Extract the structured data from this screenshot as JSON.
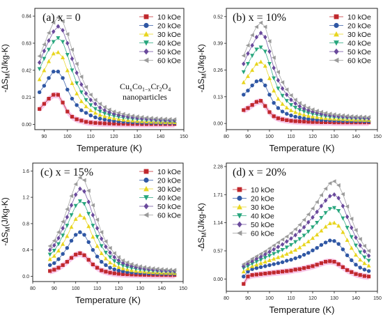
{
  "colors": {
    "10 kOe": "#c0282d",
    "20 kOe": "#2f57a4",
    "30 kOe": "#e8d51e",
    "40 kOe": "#27a67d",
    "50 kOe": "#6a4a9c",
    "60 kOe": "#9a9a9a",
    "band": "#f6b8e4",
    "frame": "#222222"
  },
  "marker_shapes": {
    "10 kOe": "square",
    "20 kOe": "circle",
    "30 kOe": "triangle-up",
    "40 kOe": "triangle-down",
    "50 kOe": "diamond",
    "60 kOe": "triangle-left"
  },
  "chart_data": [
    {
      "type": "scatter",
      "title": "(a) x = 0",
      "xlabel": "Temperature (K)",
      "ylabel": "-ΔS_M(J/kg-K)",
      "xlim": [
        86,
        150
      ],
      "ylim": [
        -0.04,
        0.9
      ],
      "xticks": [
        "90",
        "100",
        "110",
        "120",
        "130",
        "140",
        "150"
      ],
      "yticks": [
        "0.00",
        "0.21",
        "0.42",
        "0.63",
        "0.84"
      ],
      "grid": false,
      "legend_position": "top-right",
      "annotation": {
        "main": "CuxCo1−xCr2O4",
        "sub": "nanoparticles"
      },
      "x": [
        88,
        90,
        92,
        94,
        96,
        98,
        100,
        102,
        104,
        106,
        108,
        110,
        112,
        114,
        116,
        118,
        120,
        122,
        124,
        126,
        128,
        130,
        132,
        134,
        136,
        138,
        140,
        142,
        144,
        146
      ],
      "series": [
        {
          "name": "10 kOe",
          "values": [
            0.12,
            0.16,
            0.2,
            0.23,
            0.23,
            0.17,
            0.1,
            0.06,
            0.04,
            0.03,
            0.02,
            0.015,
            0.012,
            0.01,
            0.008,
            0.007,
            0.006,
            0.005,
            0.005,
            0.004,
            0.004,
            0.004,
            0.003,
            0.003,
            0.003,
            0.003,
            0.003,
            0.003,
            0.003,
            0.003
          ]
        },
        {
          "name": "20 kOe",
          "values": [
            0.25,
            0.3,
            0.36,
            0.41,
            0.41,
            0.36,
            0.27,
            0.2,
            0.15,
            0.11,
            0.09,
            0.07,
            0.055,
            0.045,
            0.038,
            0.032,
            0.028,
            0.024,
            0.021,
            0.019,
            0.017,
            0.015,
            0.014,
            0.013,
            0.012,
            0.011,
            0.01,
            0.01,
            0.01,
            0.01
          ]
        },
        {
          "name": "30 kOe",
          "values": [
            0.35,
            0.42,
            0.49,
            0.55,
            0.56,
            0.52,
            0.42,
            0.32,
            0.24,
            0.18,
            0.14,
            0.11,
            0.09,
            0.075,
            0.064,
            0.055,
            0.048,
            0.042,
            0.037,
            0.033,
            0.03,
            0.027,
            0.025,
            0.023,
            0.021,
            0.02,
            0.019,
            0.018,
            0.017,
            0.017
          ]
        },
        {
          "name": "40 kOe",
          "values": [
            0.43,
            0.51,
            0.58,
            0.64,
            0.67,
            0.64,
            0.54,
            0.42,
            0.32,
            0.25,
            0.19,
            0.15,
            0.12,
            0.1,
            0.085,
            0.074,
            0.065,
            0.058,
            0.052,
            0.047,
            0.043,
            0.039,
            0.036,
            0.033,
            0.031,
            0.029,
            0.027,
            0.026,
            0.025,
            0.024
          ]
        },
        {
          "name": "50 kOe",
          "values": [
            0.48,
            0.57,
            0.65,
            0.72,
            0.76,
            0.73,
            0.63,
            0.51,
            0.4,
            0.31,
            0.24,
            0.19,
            0.16,
            0.13,
            0.11,
            0.095,
            0.083,
            0.074,
            0.066,
            0.06,
            0.055,
            0.05,
            0.046,
            0.043,
            0.04,
            0.038,
            0.036,
            0.034,
            0.033,
            0.032
          ]
        },
        {
          "name": "60 kOe",
          "values": [
            0.53,
            0.62,
            0.71,
            0.79,
            0.83,
            0.8,
            0.7,
            0.58,
            0.47,
            0.37,
            0.29,
            0.23,
            0.19,
            0.16,
            0.135,
            0.115,
            0.1,
            0.09,
            0.081,
            0.073,
            0.067,
            0.062,
            0.057,
            0.053,
            0.05,
            0.047,
            0.045,
            0.043,
            0.041,
            0.04
          ]
        }
      ]
    },
    {
      "type": "scatter",
      "title": "(b) x = 10%",
      "xlabel": "Temperature (K)",
      "ylabel": "-ΔS_M(J/kg-K)",
      "xlim": [
        80,
        150
      ],
      "ylim": [
        -0.03,
        0.56
      ],
      "xticks": [
        "80",
        "90",
        "100",
        "110",
        "120",
        "130",
        "140",
        "150"
      ],
      "yticks": [
        "0.00",
        "0.13",
        "0.26",
        "0.39",
        "0.52"
      ],
      "grid": false,
      "legend_position": "top-right",
      "x": [
        88,
        90,
        92,
        94,
        96,
        98,
        100,
        102,
        104,
        106,
        108,
        110,
        112,
        114,
        116,
        118,
        120,
        122,
        124,
        126,
        128,
        130,
        132,
        134,
        136,
        138,
        140,
        142,
        144,
        146
      ],
      "series": [
        {
          "name": "10 kOe",
          "values": [
            0.065,
            0.075,
            0.09,
            0.105,
            0.11,
            0.085,
            0.055,
            0.035,
            0.025,
            0.02,
            0.016,
            0.013,
            0.011,
            0.01,
            0.009,
            0.008,
            0.007,
            0.007,
            0.006,
            0.006,
            0.006,
            0.005,
            0.005,
            0.005,
            0.005,
            0.005,
            0.005,
            0.005,
            0.005,
            0.005
          ]
        },
        {
          "name": "20 kOe",
          "values": [
            0.14,
            0.16,
            0.185,
            0.205,
            0.21,
            0.185,
            0.14,
            0.1,
            0.075,
            0.058,
            0.047,
            0.039,
            0.033,
            0.029,
            0.025,
            0.022,
            0.02,
            0.018,
            0.017,
            0.016,
            0.015,
            0.014,
            0.013,
            0.012,
            0.012,
            0.011,
            0.011,
            0.011,
            0.01,
            0.01
          ]
        },
        {
          "name": "30 kOe",
          "values": [
            0.2,
            0.23,
            0.26,
            0.29,
            0.3,
            0.28,
            0.22,
            0.16,
            0.12,
            0.095,
            0.077,
            0.064,
            0.055,
            0.048,
            0.042,
            0.037,
            0.034,
            0.031,
            0.028,
            0.026,
            0.024,
            0.023,
            0.022,
            0.021,
            0.02,
            0.019,
            0.018,
            0.018,
            0.017,
            0.017
          ]
        },
        {
          "name": "40 kOe",
          "values": [
            0.25,
            0.29,
            0.33,
            0.36,
            0.37,
            0.35,
            0.29,
            0.22,
            0.17,
            0.135,
            0.11,
            0.09,
            0.077,
            0.066,
            0.058,
            0.051,
            0.046,
            0.042,
            0.038,
            0.035,
            0.032,
            0.03,
            0.028,
            0.027,
            0.026,
            0.025,
            0.024,
            0.023,
            0.022,
            0.022
          ]
        },
        {
          "name": "50 kOe",
          "values": [
            0.29,
            0.34,
            0.38,
            0.42,
            0.44,
            0.42,
            0.35,
            0.27,
            0.21,
            0.17,
            0.14,
            0.115,
            0.097,
            0.083,
            0.072,
            0.064,
            0.057,
            0.052,
            0.047,
            0.043,
            0.04,
            0.037,
            0.035,
            0.033,
            0.031,
            0.03,
            0.029,
            0.028,
            0.027,
            0.026
          ]
        },
        {
          "name": "60 kOe",
          "values": [
            0.33,
            0.38,
            0.43,
            0.47,
            0.49,
            0.47,
            0.4,
            0.32,
            0.25,
            0.2,
            0.165,
            0.137,
            0.115,
            0.099,
            0.086,
            0.076,
            0.068,
            0.061,
            0.056,
            0.051,
            0.047,
            0.044,
            0.041,
            0.039,
            0.037,
            0.035,
            0.034,
            0.033,
            0.032,
            0.031
          ]
        }
      ]
    },
    {
      "type": "scatter",
      "title": "(c) x = 15%",
      "xlabel": "Temperature (K)",
      "ylabel": "-ΔS_M(J/kg-K)",
      "xlim": [
        80,
        150
      ],
      "ylim": [
        -0.08,
        1.72
      ],
      "xticks": [
        "80",
        "90",
        "100",
        "110",
        "120",
        "130",
        "140",
        "150"
      ],
      "yticks": [
        "0.0",
        "0.4",
        "0.8",
        "1.2",
        "1.6"
      ],
      "grid": false,
      "legend_position": "top-right",
      "x": [
        88,
        90,
        92,
        94,
        96,
        98,
        100,
        102,
        104,
        106,
        108,
        110,
        112,
        114,
        116,
        118,
        120,
        122,
        124,
        126,
        128,
        130,
        132,
        134,
        136,
        138,
        140,
        142,
        144,
        146
      ],
      "series": [
        {
          "name": "10 kOe",
          "values": [
            0.08,
            0.1,
            0.13,
            0.17,
            0.22,
            0.28,
            0.33,
            0.35,
            0.32,
            0.25,
            0.18,
            0.13,
            0.09,
            0.07,
            0.055,
            0.045,
            0.038,
            0.033,
            0.03,
            0.027,
            0.025,
            0.023,
            0.022,
            0.021,
            0.02,
            0.02,
            0.019,
            0.019,
            0.018,
            0.018
          ]
        },
        {
          "name": "20 kOe",
          "values": [
            0.17,
            0.2,
            0.26,
            0.34,
            0.43,
            0.54,
            0.63,
            0.67,
            0.63,
            0.52,
            0.4,
            0.3,
            0.22,
            0.17,
            0.13,
            0.105,
            0.088,
            0.075,
            0.066,
            0.059,
            0.053,
            0.049,
            0.046,
            0.043,
            0.041,
            0.039,
            0.037,
            0.036,
            0.035,
            0.034
          ]
        },
        {
          "name": "30 kOe",
          "values": [
            0.26,
            0.31,
            0.39,
            0.49,
            0.61,
            0.75,
            0.87,
            0.93,
            0.89,
            0.76,
            0.6,
            0.46,
            0.35,
            0.27,
            0.21,
            0.17,
            0.14,
            0.12,
            0.104,
            0.092,
            0.083,
            0.076,
            0.07,
            0.065,
            0.061,
            0.058,
            0.055,
            0.053,
            0.051,
            0.05
          ]
        },
        {
          "name": "40 kOe",
          "values": [
            0.33,
            0.39,
            0.49,
            0.62,
            0.77,
            0.93,
            1.07,
            1.14,
            1.1,
            0.95,
            0.77,
            0.6,
            0.46,
            0.36,
            0.29,
            0.23,
            0.19,
            0.16,
            0.14,
            0.124,
            0.111,
            0.101,
            0.093,
            0.086,
            0.081,
            0.077,
            0.073,
            0.07,
            0.067,
            0.065
          ]
        },
        {
          "name": "50 kOe",
          "values": [
            0.4,
            0.47,
            0.58,
            0.73,
            0.9,
            1.08,
            1.24,
            1.33,
            1.29,
            1.13,
            0.93,
            0.73,
            0.57,
            0.45,
            0.36,
            0.29,
            0.24,
            0.2,
            0.175,
            0.155,
            0.138,
            0.125,
            0.115,
            0.107,
            0.1,
            0.095,
            0.09,
            0.086,
            0.083,
            0.08
          ]
        },
        {
          "name": "60 kOe",
          "values": [
            0.46,
            0.54,
            0.67,
            0.83,
            1.02,
            1.22,
            1.4,
            1.5,
            1.46,
            1.3,
            1.08,
            0.86,
            0.67,
            0.53,
            0.43,
            0.35,
            0.29,
            0.24,
            0.21,
            0.185,
            0.165,
            0.15,
            0.138,
            0.128,
            0.12,
            0.113,
            0.107,
            0.102,
            0.098,
            0.095
          ]
        }
      ]
    },
    {
      "type": "scatter",
      "title": "(d) x = 20%",
      "xlabel": "Temperature (K)",
      "ylabel": "-ΔS_M(J/kg-K)",
      "xlim": [
        80,
        150
      ],
      "ylim": [
        -0.25,
        2.35
      ],
      "xticks": [
        "80",
        "90",
        "100",
        "110",
        "120",
        "130",
        "140",
        "150"
      ],
      "yticks": [
        "0.00",
        "0.57",
        "1.14",
        "1.71",
        "2.28"
      ],
      "grid": false,
      "legend_position": "top-left",
      "x": [
        88,
        90,
        92,
        94,
        96,
        98,
        100,
        102,
        104,
        106,
        108,
        110,
        112,
        114,
        116,
        118,
        120,
        122,
        124,
        126,
        128,
        130,
        132,
        134,
        136,
        138,
        140,
        142,
        144,
        146
      ],
      "series": [
        {
          "name": "10 kOe",
          "values": [
            -0.1,
            0.05,
            0.08,
            0.09,
            0.1,
            0.11,
            0.12,
            0.13,
            0.14,
            0.15,
            0.16,
            0.17,
            0.19,
            0.2,
            0.22,
            0.24,
            0.26,
            0.29,
            0.32,
            0.35,
            0.36,
            0.35,
            0.3,
            0.24,
            0.18,
            0.14,
            0.1,
            0.08,
            0.06,
            0.05
          ]
        },
        {
          "name": "20 kOe",
          "values": [
            0.05,
            0.15,
            0.2,
            0.22,
            0.24,
            0.26,
            0.28,
            0.3,
            0.32,
            0.34,
            0.37,
            0.39,
            0.42,
            0.45,
            0.49,
            0.53,
            0.58,
            0.63,
            0.69,
            0.74,
            0.78,
            0.77,
            0.71,
            0.6,
            0.48,
            0.38,
            0.29,
            0.23,
            0.19,
            0.16
          ]
        },
        {
          "name": "30 kOe",
          "values": [
            0.15,
            0.21,
            0.26,
            0.29,
            0.32,
            0.35,
            0.38,
            0.41,
            0.44,
            0.47,
            0.51,
            0.55,
            0.59,
            0.64,
            0.7,
            0.76,
            0.83,
            0.9,
            0.98,
            1.06,
            1.13,
            1.14,
            1.08,
            0.95,
            0.79,
            0.63,
            0.49,
            0.39,
            0.32,
            0.27
          ]
        },
        {
          "name": "40 kOe",
          "values": [
            0.22,
            0.26,
            0.31,
            0.35,
            0.39,
            0.43,
            0.47,
            0.51,
            0.55,
            0.59,
            0.64,
            0.69,
            0.75,
            0.81,
            0.88,
            0.96,
            1.05,
            1.14,
            1.24,
            1.34,
            1.42,
            1.44,
            1.38,
            1.23,
            1.04,
            0.85,
            0.68,
            0.54,
            0.44,
            0.37
          ]
        },
        {
          "name": "50 kOe",
          "values": [
            0.26,
            0.31,
            0.36,
            0.41,
            0.45,
            0.5,
            0.55,
            0.6,
            0.65,
            0.7,
            0.76,
            0.82,
            0.89,
            0.97,
            1.05,
            1.15,
            1.25,
            1.36,
            1.48,
            1.59,
            1.68,
            1.71,
            1.64,
            1.48,
            1.26,
            1.04,
            0.84,
            0.68,
            0.56,
            0.47
          ]
        },
        {
          "name": "60 kOe",
          "values": [
            0.3,
            0.35,
            0.41,
            0.46,
            0.51,
            0.56,
            0.62,
            0.68,
            0.74,
            0.8,
            0.86,
            0.93,
            1.01,
            1.1,
            1.2,
            1.31,
            1.43,
            1.56,
            1.7,
            1.83,
            1.94,
            1.98,
            1.9,
            1.72,
            1.47,
            1.22,
            0.99,
            0.81,
            0.67,
            0.57
          ]
        }
      ]
    }
  ]
}
